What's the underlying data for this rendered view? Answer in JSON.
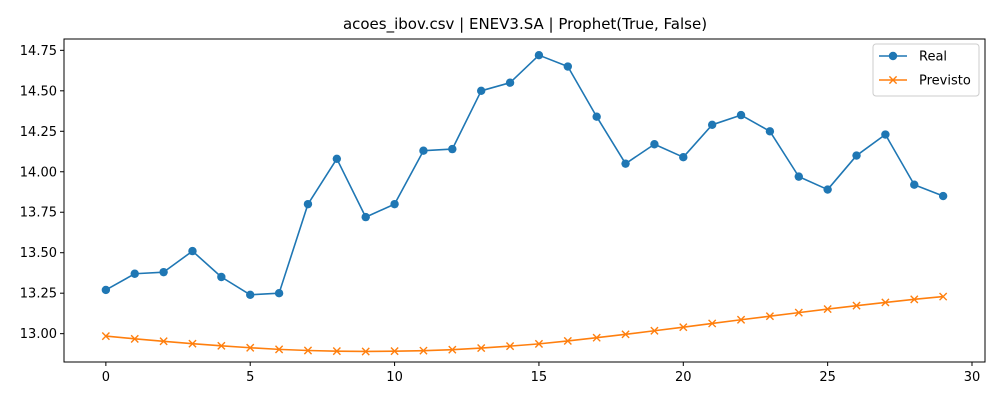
{
  "chart_data": {
    "type": "line",
    "title": "acoes_ibov.csv | ENEV3.SA | Prophet(True, False)",
    "xlabel": "",
    "ylabel": "",
    "xlim": [
      -1.45,
      30.45
    ],
    "ylim": [
      12.825,
      14.82
    ],
    "xticks": [
      0,
      5,
      10,
      15,
      20,
      25,
      30
    ],
    "yticks": [
      13.0,
      13.25,
      13.5,
      13.75,
      14.0,
      14.25,
      14.5,
      14.75
    ],
    "ytick_labels": [
      "13.00",
      "13.25",
      "13.50",
      "13.75",
      "14.00",
      "14.25",
      "14.50",
      "14.75"
    ],
    "grid": false,
    "legend_position": "top-right",
    "x": [
      0,
      1,
      2,
      3,
      4,
      5,
      6,
      7,
      8,
      9,
      10,
      11,
      12,
      13,
      14,
      15,
      16,
      17,
      18,
      19,
      20,
      21,
      22,
      23,
      24,
      25,
      26,
      27,
      28,
      29
    ],
    "series": [
      {
        "name": "Real",
        "color": "#1f77b4",
        "marker": "circle",
        "values": [
          13.27,
          13.37,
          13.38,
          13.51,
          13.35,
          13.24,
          13.25,
          13.8,
          14.08,
          13.72,
          13.8,
          14.13,
          14.14,
          14.5,
          14.55,
          14.72,
          14.65,
          14.34,
          14.05,
          14.17,
          14.09,
          14.29,
          14.35,
          14.25,
          13.97,
          13.89,
          14.1,
          14.23,
          13.92,
          13.85
        ]
      },
      {
        "name": "Previsto",
        "color": "#ff7f0e",
        "marker": "x",
        "values": [
          12.985,
          12.968,
          12.953,
          12.938,
          12.925,
          12.913,
          12.903,
          12.896,
          12.892,
          12.89,
          12.892,
          12.895,
          12.901,
          12.911,
          12.923,
          12.937,
          12.955,
          12.975,
          12.996,
          13.018,
          13.04,
          13.063,
          13.086,
          13.108,
          13.13,
          13.152,
          13.173,
          13.193,
          13.212,
          13.229
        ]
      }
    ]
  }
}
